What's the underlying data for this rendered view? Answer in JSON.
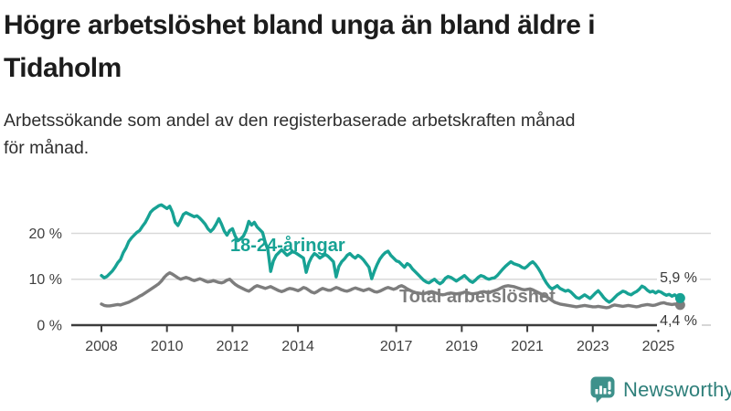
{
  "header": {
    "title": "Högre arbetslöshet bland unga än bland äldre i\nTidaholm",
    "subtitle": "Arbetssökande som andel av den registerbaserade arbetskraften månad\nför månad."
  },
  "chart_data": {
    "type": "line",
    "x_start": {
      "year": 2008,
      "month": 1
    },
    "x_end": {
      "year": 2025,
      "month": 9
    },
    "x_tick_years": [
      2008,
      2010,
      2012,
      2014,
      2017,
      2019,
      2021,
      2023,
      2025
    ],
    "y_ticks": [
      {
        "value": 0,
        "label": "0 %"
      },
      {
        "value": 10,
        "label": "10 %"
      },
      {
        "value": 20,
        "label": "20 %"
      }
    ],
    "ylim": [
      0,
      29
    ],
    "grid": "horizontal",
    "legend_position": "inline-labels",
    "series": [
      {
        "name": "18-24-åringar",
        "color": "#17a294",
        "end_label": "5,9 %",
        "values": [
          10.8,
          10.3,
          10.6,
          11.2,
          11.8,
          12.6,
          13.6,
          14.3,
          15.8,
          16.8,
          18.2,
          19.0,
          19.6,
          20.2,
          20.6,
          21.5,
          22.3,
          23.4,
          24.6,
          25.2,
          25.6,
          26.0,
          26.2,
          25.8,
          25.4,
          25.9,
          24.6,
          22.4,
          21.7,
          22.8,
          24.1,
          24.5,
          24.2,
          23.9,
          23.6,
          23.8,
          23.3,
          22.7,
          22.0,
          21.0,
          20.4,
          21.0,
          22.0,
          23.2,
          22.0,
          20.5,
          19.6,
          20.6,
          21.0,
          19.4,
          18.4,
          18.8,
          19.4,
          20.6,
          22.6,
          21.8,
          22.4,
          21.4,
          20.8,
          20.2,
          18.0,
          16.4,
          11.7,
          14.0,
          15.2,
          15.8,
          16.4,
          15.8,
          15.2,
          15.6,
          16.0,
          15.8,
          15.4,
          15.0,
          14.6,
          11.5,
          13.6,
          14.8,
          15.6,
          15.2,
          14.6,
          15.0,
          15.4,
          15.0,
          14.4,
          13.8,
          10.5,
          12.8,
          13.8,
          14.4,
          15.2,
          15.6,
          15.0,
          14.6,
          15.2,
          14.8,
          14.2,
          13.4,
          12.6,
          10.1,
          11.8,
          13.2,
          14.4,
          15.2,
          15.8,
          16.1,
          15.2,
          14.6,
          14.0,
          13.8,
          13.2,
          12.6,
          13.4,
          13.0,
          12.2,
          11.6,
          11.0,
          10.4,
          9.8,
          9.4,
          9.2,
          9.6,
          10.0,
          9.4,
          9.0,
          9.4,
          10.2,
          10.6,
          10.4,
          10.0,
          9.6,
          10.0,
          10.4,
          10.8,
          10.2,
          9.6,
          9.3,
          9.8,
          10.4,
          10.8,
          10.6,
          10.2,
          10.0,
          10.2,
          10.3,
          10.8,
          11.5,
          12.2,
          12.8,
          13.3,
          13.8,
          13.4,
          13.2,
          13.0,
          12.6,
          12.4,
          12.8,
          13.4,
          13.8,
          13.2,
          12.4,
          11.4,
          10.2,
          9.2,
          8.4,
          7.9,
          8.2,
          8.6,
          8.0,
          7.7,
          7.4,
          7.6,
          7.2,
          6.6,
          6.0,
          5.8,
          6.2,
          6.6,
          6.2,
          5.8,
          6.4,
          7.0,
          7.5,
          6.8,
          6.0,
          5.4,
          5.0,
          5.4,
          6.0,
          6.6,
          7.0,
          7.4,
          7.2,
          6.8,
          6.6,
          7.0,
          7.3,
          7.8,
          8.5,
          8.2,
          7.6,
          7.2,
          7.4,
          7.0,
          7.4,
          7.2,
          6.8,
          6.5,
          6.7,
          6.3,
          6.6,
          6.1,
          5.9
        ]
      },
      {
        "name": "Total arbetslöshet",
        "color": "#7d7d7d",
        "end_label": "4,4 %",
        "values": [
          4.6,
          4.3,
          4.2,
          4.2,
          4.3,
          4.4,
          4.5,
          4.4,
          4.6,
          4.8,
          5.0,
          5.3,
          5.6,
          5.9,
          6.3,
          6.6,
          7.0,
          7.4,
          7.8,
          8.2,
          8.6,
          9.0,
          9.6,
          10.4,
          11.0,
          11.4,
          11.1,
          10.7,
          10.3,
          10.0,
          10.2,
          10.4,
          10.2,
          9.9,
          9.7,
          9.9,
          10.1,
          9.9,
          9.6,
          9.4,
          9.5,
          9.7,
          9.5,
          9.3,
          9.2,
          9.4,
          9.8,
          10.0,
          9.4,
          8.9,
          8.5,
          8.2,
          7.9,
          7.6,
          7.4,
          7.8,
          8.3,
          8.6,
          8.4,
          8.2,
          8.0,
          8.2,
          8.4,
          8.1,
          7.8,
          7.5,
          7.3,
          7.5,
          7.8,
          8.0,
          7.9,
          7.7,
          7.5,
          7.8,
          8.2,
          8.0,
          7.6,
          7.2,
          7.0,
          7.3,
          7.7,
          8.0,
          7.8,
          7.6,
          7.6,
          7.9,
          8.2,
          8.0,
          7.7,
          7.5,
          7.4,
          7.6,
          7.9,
          8.1,
          7.9,
          7.7,
          7.5,
          7.7,
          7.9,
          7.6,
          7.3,
          7.2,
          7.4,
          7.7,
          8.0,
          8.2,
          8.0,
          7.8,
          8.0,
          8.4,
          8.6,
          8.3,
          7.9,
          7.6,
          7.3,
          7.1,
          7.0,
          6.9,
          6.8,
          7.0,
          7.2,
          7.3,
          7.1,
          6.9,
          6.7,
          6.6,
          6.7,
          6.9,
          7.0,
          6.9,
          6.8,
          6.9,
          7.0,
          7.2,
          7.1,
          6.9,
          6.8,
          6.9,
          7.0,
          7.2,
          7.3,
          7.2,
          7.1,
          7.3,
          7.5,
          7.7,
          8.0,
          8.3,
          8.5,
          8.6,
          8.5,
          8.4,
          8.2,
          8.0,
          7.8,
          7.7,
          7.8,
          7.9,
          7.7,
          7.4,
          7.1,
          6.8,
          6.5,
          6.2,
          5.8,
          5.4,
          5.0,
          4.8,
          4.6,
          4.5,
          4.4,
          4.3,
          4.2,
          4.1,
          4.0,
          4.1,
          4.2,
          4.3,
          4.2,
          4.1,
          4.0,
          4.0,
          4.1,
          4.0,
          3.9,
          3.8,
          3.9,
          4.2,
          4.4,
          4.3,
          4.2,
          4.1,
          4.2,
          4.3,
          4.2,
          4.1,
          4.0,
          4.1,
          4.3,
          4.4,
          4.5,
          4.4,
          4.3,
          4.4,
          4.6,
          4.8,
          4.9,
          4.7,
          4.6,
          4.5,
          4.6,
          4.5,
          4.4
        ]
      }
    ]
  },
  "footer": {
    "brand": "Newsworthy",
    "brand_color": "#2e7f7a",
    "logo_icon": "bar-chart-speech-bubble-icon"
  }
}
